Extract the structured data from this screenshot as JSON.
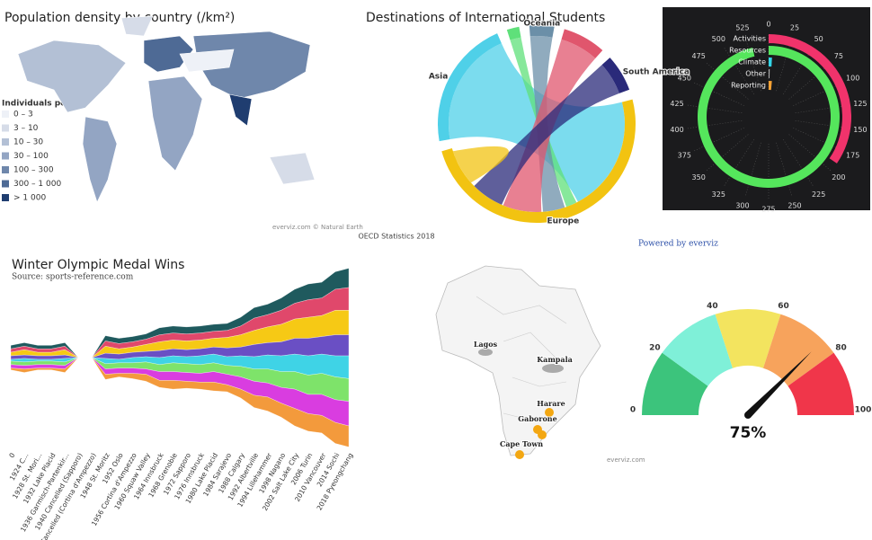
{
  "chart_data": [
    {
      "type": "choropleth",
      "title": "Population density by country (/km²)",
      "legend_title": "Individuals per km²",
      "legend": [
        {
          "label": "0 – 3",
          "color": "#eef1f7"
        },
        {
          "label": "3 – 10",
          "color": "#d6dce8"
        },
        {
          "label": "10 – 30",
          "color": "#b3c0d5"
        },
        {
          "label": "30 – 100",
          "color": "#93a5c3"
        },
        {
          "label": "100 – 300",
          "color": "#6f87ab"
        },
        {
          "label": "300 – 1 000",
          "color": "#4e6a95"
        },
        {
          "label": "> 1 000",
          "color": "#1f3d70"
        }
      ],
      "credit": "everviz.com © Natural Earth"
    },
    {
      "type": "chord",
      "title": "Destinations of International Students",
      "credit": "OECD Statistics 2018",
      "categories": [
        "Asia",
        null,
        "Oceania",
        null,
        "South America",
        "Europe"
      ],
      "values": [
        21,
        2,
        4,
        7,
        6,
        49
      ],
      "colors": [
        "#4fd0e8",
        "#5fe07a",
        "#6b8fa8",
        "#e0566d",
        "#2a2a7a",
        "#f2c311"
      ]
    },
    {
      "type": "radial-bar",
      "categories": [
        "Activities",
        "Resources",
        "Climate",
        "Other",
        "Reporting"
      ],
      "values": [
        190,
        530,
        5,
        2,
        8
      ],
      "colors": [
        "#f0336b",
        "#55e65c",
        "#33d6e8",
        "#b0b0b0",
        "#f7a234"
      ],
      "xlim": [
        0,
        550
      ],
      "xticks": [
        0,
        25,
        50,
        75,
        100,
        125,
        150,
        175,
        200,
        225,
        250,
        275,
        300,
        325,
        350,
        375,
        400,
        425,
        450,
        475,
        500,
        525
      ],
      "grid": true
    },
    {
      "type": "streamgraph",
      "title": "Winter Olympic Medal Wins",
      "subtitle": "Source: sports-reference.com",
      "categories": [
        "0",
        "1924 C...",
        "1928 St. Mori...",
        "1932 Lake Placid",
        "1936 Garmisch-Partenkir...",
        "1940 Cancelled (Sapporo)",
        "1944 Cancelled (Cortina d'Ampezzo)",
        "1948 St. Moritz",
        "1952 Oslo",
        "1956 Cortina d'Ampezzo",
        "1960 Squaw Valley",
        "1964 Innsbruck",
        "1968 Grenoble",
        "1972 Sapporo",
        "1976 Innsbruck",
        "1980 Lake Placid",
        "1984 Sarajevo",
        "1988 Calgary",
        "1992 Albertville",
        "1994 Lillehammer",
        "1998 Nagano",
        "2002 Salt Lake City",
        "2006 Turin",
        "2010 Vancouver",
        "2014 Sochi",
        "2018 Pyeongchang"
      ],
      "series": [
        {
          "color": "#1f5a5e",
          "values": [
            2,
            2,
            2,
            2,
            2,
            0,
            0,
            3,
            3,
            3,
            3,
            4,
            4,
            4,
            4,
            4,
            4,
            5,
            6,
            6,
            7,
            8,
            9,
            9,
            10,
            11
          ]
        },
        {
          "color": "#e0486b",
          "values": [
            2,
            2,
            2,
            2,
            2,
            0,
            0,
            3,
            3,
            3,
            3,
            4,
            4,
            4,
            4,
            4,
            4,
            5,
            7,
            7,
            8,
            9,
            10,
            10,
            12,
            13
          ]
        },
        {
          "color": "#f6c915",
          "values": [
            2,
            3,
            2,
            2,
            3,
            0,
            0,
            4,
            3,
            3,
            4,
            5,
            5,
            5,
            5,
            5,
            6,
            7,
            8,
            9,
            10,
            11,
            12,
            12,
            14,
            14
          ]
        },
        {
          "color": "#6a4fc4",
          "values": [
            2,
            2,
            2,
            2,
            2,
            0,
            0,
            3,
            3,
            3,
            3,
            4,
            4,
            4,
            4,
            4,
            5,
            5,
            7,
            7,
            8,
            9,
            10,
            10,
            12,
            12
          ]
        },
        {
          "color": "#3fd3e6",
          "values": [
            1,
            2,
            1,
            1,
            2,
            0,
            0,
            3,
            2,
            3,
            3,
            4,
            4,
            4,
            5,
            5,
            5,
            6,
            7,
            8,
            9,
            10,
            11,
            11,
            12,
            13
          ]
        },
        {
          "color": "#7ee36a",
          "values": [
            2,
            2,
            2,
            2,
            2,
            0,
            0,
            3,
            3,
            3,
            4,
            4,
            5,
            5,
            5,
            5,
            5,
            6,
            7,
            8,
            9,
            10,
            11,
            12,
            13,
            13
          ]
        },
        {
          "color": "#d93de0",
          "values": [
            2,
            2,
            2,
            2,
            2,
            0,
            0,
            3,
            3,
            3,
            3,
            5,
            5,
            5,
            5,
            6,
            6,
            7,
            8,
            8,
            9,
            11,
            11,
            12,
            13,
            14
          ]
        },
        {
          "color": "#f39a3c",
          "values": [
            1,
            2,
            1,
            1,
            2,
            0,
            0,
            3,
            2,
            3,
            4,
            4,
            5,
            4,
            4,
            5,
            4,
            5,
            7,
            8,
            8,
            10,
            10,
            10,
            12,
            12
          ]
        }
      ]
    },
    {
      "type": "map",
      "labels": [
        "Lagos",
        "Kampala",
        "Harare",
        "Gaborone",
        "Cape Town"
      ],
      "credit": "everviz.com"
    },
    {
      "type": "gauge",
      "header": "Powered by everviz",
      "value": 75,
      "value_label": "75%",
      "xlim": [
        0,
        100
      ],
      "xticks": [
        0,
        20,
        40,
        60,
        80,
        100
      ],
      "bands": [
        {
          "from": 0,
          "to": 20,
          "color": "#3cc47c"
        },
        {
          "from": 20,
          "to": 40,
          "color": "#7ff0d8"
        },
        {
          "from": 40,
          "to": 60,
          "color": "#f3e45f"
        },
        {
          "from": 60,
          "to": 80,
          "color": "#f7a35c"
        },
        {
          "from": 80,
          "to": 100,
          "color": "#f0364a"
        }
      ]
    }
  ]
}
